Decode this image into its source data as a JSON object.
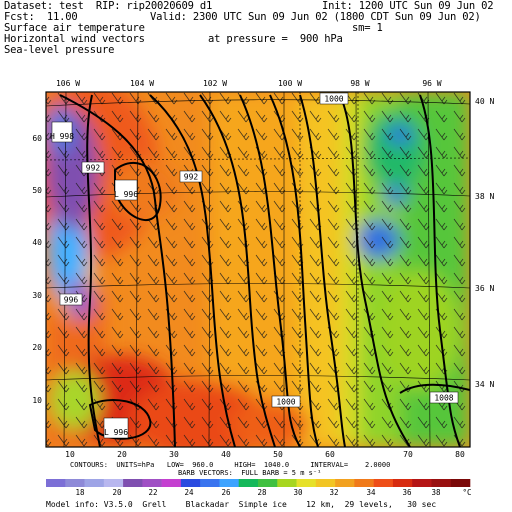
{
  "header": {
    "dataset": "Dataset: test  RIP: rip20020609 d1",
    "init": "Init: 1200 UTC Sun 09 Jun 02",
    "fcst": "Fcst:  11.00",
    "valid": "Valid: 2300 UTC Sun 09 Jun 02 (1800 CDT Sun 09 Jun 02)",
    "field1": "Surface air temperature",
    "sm": "sm= 1",
    "field2": "Horizontal wind vectors",
    "pressure": "at pressure =  900 hPa",
    "field3": "Sea-level pressure"
  },
  "map": {
    "lon_labels": [
      "106 W",
      "104 W",
      "102 W",
      "100 W",
      "98 W",
      "96 W"
    ],
    "lat_labels": [
      "40 N",
      "38 N",
      "36 N",
      "34 N"
    ],
    "y_ticks": [
      "60",
      "50",
      "40",
      "30",
      "20",
      "10"
    ],
    "x_ticks": [
      "10",
      "20",
      "30",
      "40",
      "50",
      "60",
      "70",
      "80"
    ],
    "contour_labels": [
      "1000",
      "992",
      "L 996",
      "992",
      "1000",
      "1008",
      "L 996",
      "996",
      "H 998"
    ]
  },
  "footer": {
    "contours": "CONTOURS:  UNITS=hPa   LOW=  960.0     HIGH=  1040.0     INTERVAL=    2.0000",
    "barb": "BARB VECTORS:  FULL BARB = 5 m s⁻¹",
    "colorbar_labels": [
      "18",
      "20",
      "22",
      "24",
      "26",
      "28",
      "30",
      "32",
      "34",
      "36",
      "38",
      "°C"
    ],
    "colorbar_colors": [
      "#7c6fd6",
      "#8e8ad8",
      "#9ea4e6",
      "#b8b7ef",
      "#7f4fb0",
      "#a050c4",
      "#c43fd0",
      "#2b4be0",
      "#3a74ef",
      "#3da3ff",
      "#15b85a",
      "#40c040",
      "#a7d61f",
      "#e6e12a",
      "#f2c524",
      "#f2a11f",
      "#f07a1a",
      "#ee4e18",
      "#d72b10",
      "#b51515",
      "#991010",
      "#7a0808"
    ],
    "model_info": "Model info: V3.5.0  Grell    Blackadar  Simple ice    12 km,  29 levels,   30 sec"
  }
}
